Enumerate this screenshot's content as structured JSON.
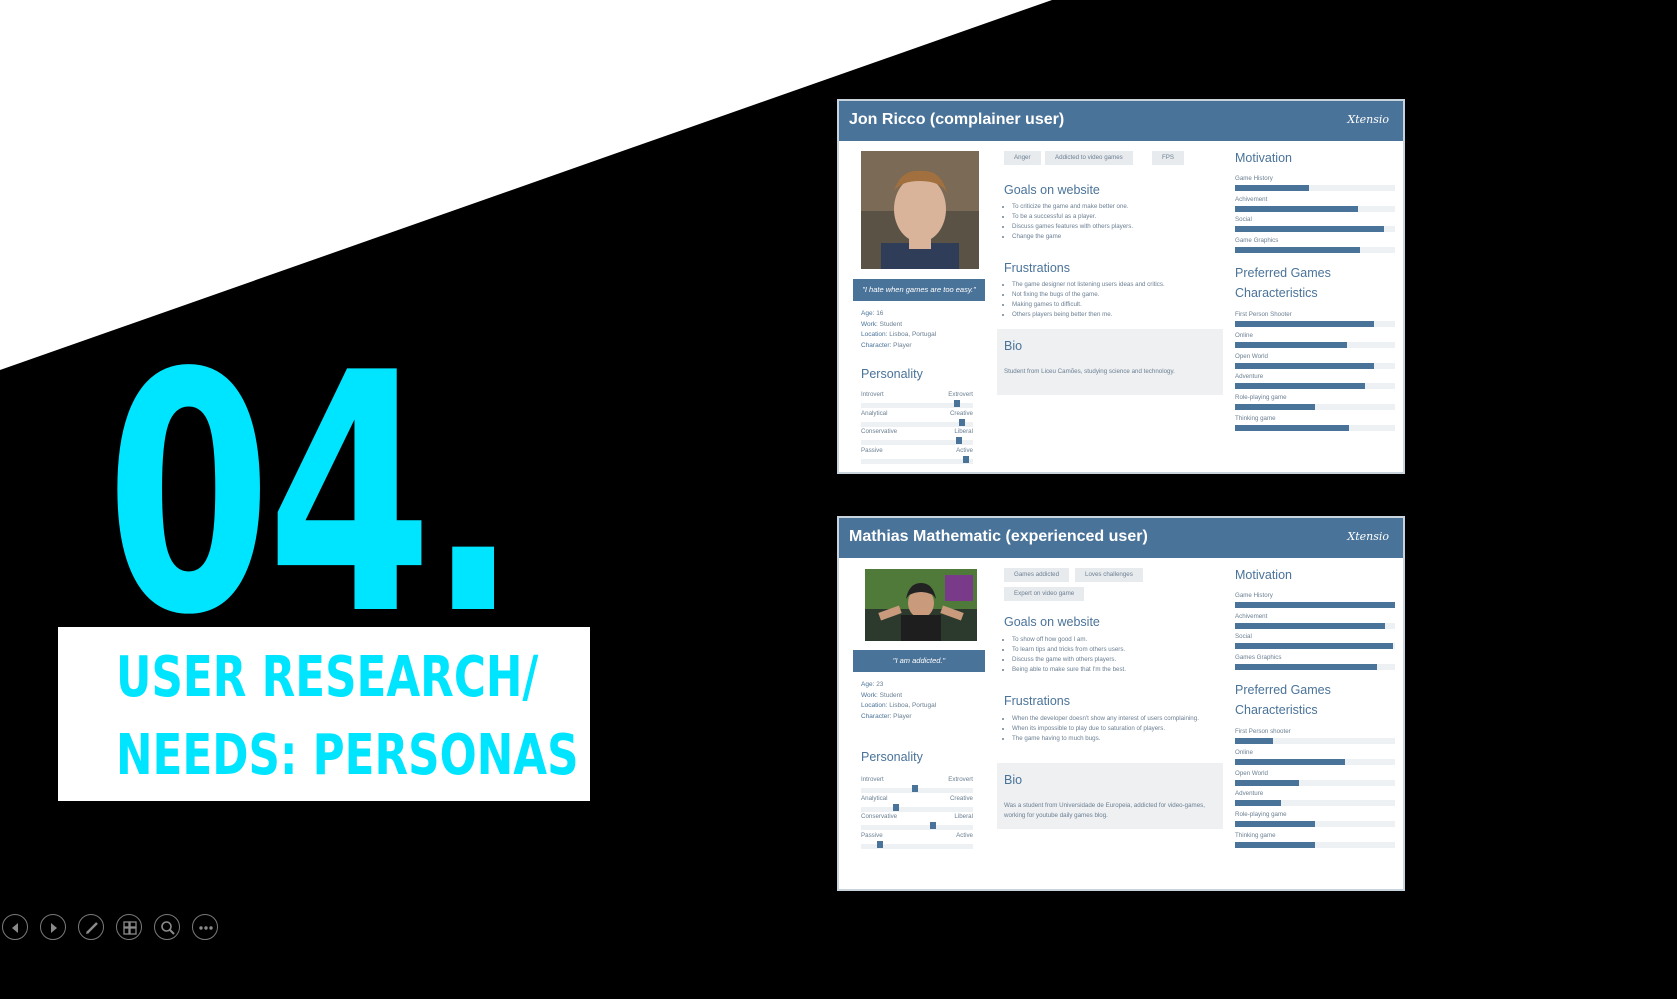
{
  "slide": {
    "number": "04.",
    "title_line1": "USER RESEARCH/",
    "title_line2": "NEEDS: PERSONAS",
    "accent_color": "#00e5ff"
  },
  "persona_brand_color": "#4a7399",
  "personas": [
    {
      "title": "Jon Ricco (complainer user)",
      "brand": "Xtensio",
      "quote": "\"I hate when games are too easy.\"",
      "facts": {
        "age_label": "Age:",
        "age": "16",
        "work_label": "Work:",
        "work": "Student",
        "location_label": "Location:",
        "location": "Lisboa, Portugal",
        "character_label": "Character:",
        "character": "Player"
      },
      "tags": [
        "Anger",
        "Addicted to video games",
        "FPS"
      ],
      "goals_title": "Goals on website",
      "goals": [
        "To criticize the game and make better one.",
        "To be a successful as a player.",
        "Discuss games features with others players.",
        "Change the game"
      ],
      "frustrations_title": "Frustrations",
      "frustrations": [
        "The game designer not listening users ideas and critics.",
        "Not fixing the bugs of the game.",
        "Making games to difficult.",
        "Others players being better then me."
      ],
      "bio_title": "Bio",
      "bio": "Student from Liceu Camões, studying science and technology.",
      "personality_title": "Personality",
      "personality": [
        {
          "left": "Introvert",
          "right": "Extrovert",
          "value": 0.88
        },
        {
          "left": "Analytical",
          "right": "Creative",
          "value": 0.92
        },
        {
          "left": "Conservative",
          "right": "Liberal",
          "value": 0.9
        },
        {
          "left": "Passive",
          "right": "Active",
          "value": 0.96
        }
      ],
      "motivation_title": "Motivation",
      "motivation": [
        {
          "label": "Game History",
          "value": 0.46
        },
        {
          "label": "Achivement",
          "value": 0.77
        },
        {
          "label": "Social",
          "value": 0.93
        },
        {
          "label": "Game Graphics",
          "value": 0.78
        }
      ],
      "preferred_title_1": "Preferred Games",
      "preferred_title_2": "Characteristics",
      "preferred": [
        {
          "label": "First Person Shooter",
          "value": 0.87
        },
        {
          "label": "Online",
          "value": 0.7
        },
        {
          "label": "Open World",
          "value": 0.87
        },
        {
          "label": "Adventure",
          "value": 0.81
        },
        {
          "label": "Role-playing game",
          "value": 0.5
        },
        {
          "label": "Thinking game",
          "value": 0.71
        }
      ]
    },
    {
      "title": "Mathias Mathematic (experienced user)",
      "brand": "Xtensio",
      "quote": "\"I am addicted.\"",
      "facts": {
        "age_label": "Age:",
        "age": "23",
        "work_label": "Work:",
        "work": "Student",
        "location_label": "Location:",
        "location": "Lisboa, Portugal",
        "character_label": "Character:",
        "character": "Player"
      },
      "tags": [
        "Games addicted",
        "Loves challenges",
        "Expert on video game"
      ],
      "goals_title": "Goals on website",
      "goals": [
        "To show off how good I am.",
        "To learn tips and tricks from others users.",
        "Discuss the game with others players.",
        "Being able to make sure that I'm the best."
      ],
      "frustrations_title": "Frustrations",
      "frustrations": [
        "When the developer doesn't show any interest of users complaining.",
        "When its impossible to play due to saturation of players.",
        "The game having to much bugs."
      ],
      "bio_title": "Bio",
      "bio": "Was a student from Universidade de Europeia, addicted for video-games, working for youtube daily games blog.",
      "personality_title": "Personality",
      "personality": [
        {
          "left": "Introvert",
          "right": "Extrovert",
          "value": 0.48
        },
        {
          "left": "Analytical",
          "right": "Creative",
          "value": 0.3
        },
        {
          "left": "Conservative",
          "right": "Liberal",
          "value": 0.65
        },
        {
          "left": "Passive",
          "right": "Active",
          "value": 0.15
        }
      ],
      "motivation_title": "Motivation",
      "motivation": [
        {
          "label": "Game History",
          "value": 1.0
        },
        {
          "label": "Achivement",
          "value": 0.94
        },
        {
          "label": "Social",
          "value": 0.99
        },
        {
          "label": "Games Graphics",
          "value": 0.89
        }
      ],
      "preferred_title_1": "Preferred Games",
      "preferred_title_2": "Characteristics",
      "preferred": [
        {
          "label": "First Person shooter",
          "value": 0.24
        },
        {
          "label": "Online",
          "value": 0.69
        },
        {
          "label": "Open World",
          "value": 0.4
        },
        {
          "label": "Adventure",
          "value": 0.29
        },
        {
          "label": "Role-playing game",
          "value": 0.5
        },
        {
          "label": "Thinking game",
          "value": 0.5
        }
      ]
    }
  ],
  "controls": [
    {
      "name": "previous-slide",
      "icon": "arrow-left-icon"
    },
    {
      "name": "next-slide",
      "icon": "arrow-right-icon"
    },
    {
      "name": "pen-tool",
      "icon": "pen-icon"
    },
    {
      "name": "see-all-slides",
      "icon": "slides-grid-icon"
    },
    {
      "name": "zoom",
      "icon": "magnifier-icon"
    },
    {
      "name": "more-options",
      "icon": "ellipsis-icon"
    }
  ]
}
